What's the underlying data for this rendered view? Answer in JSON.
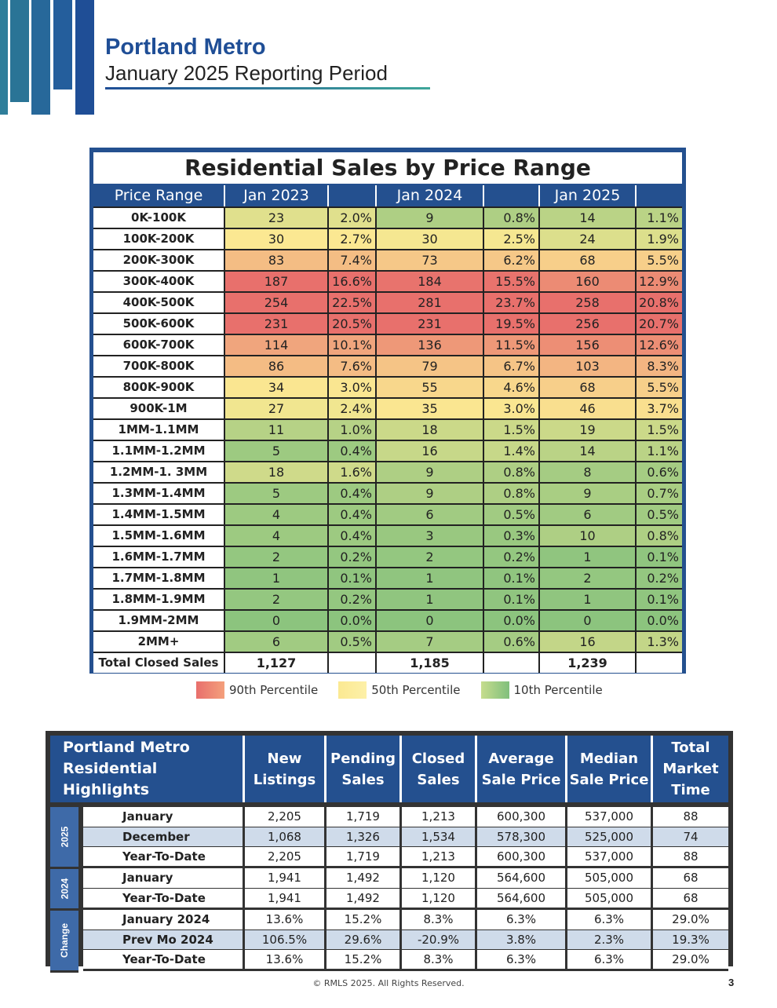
{
  "header": {
    "title": "Portland Metro",
    "subtitle": "January 2025 Reporting Period"
  },
  "sales_table": {
    "title": "Residential Sales by Price Range",
    "headers": [
      "Price Range",
      "Jan 2023",
      "",
      "Jan 2024",
      "",
      "Jan 2025",
      ""
    ],
    "rows": [
      {
        "range": "0K-100K",
        "v23": "23",
        "p23": "2.0%",
        "v24": "9",
        "p24": "0.8%",
        "v25": "14",
        "p25": "1.1%"
      },
      {
        "range": "100K-200K",
        "v23": "30",
        "p23": "2.7%",
        "v24": "30",
        "p24": "2.5%",
        "v25": "24",
        "p25": "1.9%"
      },
      {
        "range": "200K-300K",
        "v23": "83",
        "p23": "7.4%",
        "v24": "73",
        "p24": "6.2%",
        "v25": "68",
        "p25": "5.5%"
      },
      {
        "range": "300K-400K",
        "v23": "187",
        "p23": "16.6%",
        "v24": "184",
        "p24": "15.5%",
        "v25": "160",
        "p25": "12.9%"
      },
      {
        "range": "400K-500K",
        "v23": "254",
        "p23": "22.5%",
        "v24": "281",
        "p24": "23.7%",
        "v25": "258",
        "p25": "20.8%"
      },
      {
        "range": "500K-600K",
        "v23": "231",
        "p23": "20.5%",
        "v24": "231",
        "p24": "19.5%",
        "v25": "256",
        "p25": "20.7%"
      },
      {
        "range": "600K-700K",
        "v23": "114",
        "p23": "10.1%",
        "v24": "136",
        "p24": "11.5%",
        "v25": "156",
        "p25": "12.6%"
      },
      {
        "range": "700K-800K",
        "v23": "86",
        "p23": "7.6%",
        "v24": "79",
        "p24": "6.7%",
        "v25": "103",
        "p25": "8.3%"
      },
      {
        "range": "800K-900K",
        "v23": "34",
        "p23": "3.0%",
        "v24": "55",
        "p24": "4.6%",
        "v25": "68",
        "p25": "5.5%"
      },
      {
        "range": "900K-1M",
        "v23": "27",
        "p23": "2.4%",
        "v24": "35",
        "p24": "3.0%",
        "v25": "46",
        "p25": "3.7%"
      },
      {
        "range": "1MM-1.1MM",
        "v23": "11",
        "p23": "1.0%",
        "v24": "18",
        "p24": "1.5%",
        "v25": "19",
        "p25": "1.5%"
      },
      {
        "range": "1.1MM-1.2MM",
        "v23": "5",
        "p23": "0.4%",
        "v24": "16",
        "p24": "1.4%",
        "v25": "14",
        "p25": "1.1%"
      },
      {
        "range": "1.2MM-1. 3MM",
        "v23": "18",
        "p23": "1.6%",
        "v24": "9",
        "p24": "0.8%",
        "v25": "8",
        "p25": "0.6%"
      },
      {
        "range": "1.3MM-1.4MM",
        "v23": "5",
        "p23": "0.4%",
        "v24": "9",
        "p24": "0.8%",
        "v25": "9",
        "p25": "0.7%"
      },
      {
        "range": "1.4MM-1.5MM",
        "v23": "4",
        "p23": "0.4%",
        "v24": "6",
        "p24": "0.5%",
        "v25": "6",
        "p25": "0.5%"
      },
      {
        "range": "1.5MM-1.6MM",
        "v23": "4",
        "p23": "0.4%",
        "v24": "3",
        "p24": "0.3%",
        "v25": "10",
        "p25": "0.8%"
      },
      {
        "range": "1.6MM-1.7MM",
        "v23": "2",
        "p23": "0.2%",
        "v24": "2",
        "p24": "0.2%",
        "v25": "1",
        "p25": "0.1%"
      },
      {
        "range": "1.7MM-1.8MM",
        "v23": "1",
        "p23": "0.1%",
        "v24": "1",
        "p24": "0.1%",
        "v25": "2",
        "p25": "0.2%"
      },
      {
        "range": "1.8MM-1.9MM",
        "v23": "2",
        "p23": "0.2%",
        "v24": "1",
        "p24": "0.1%",
        "v25": "1",
        "p25": "0.1%"
      },
      {
        "range": "1.9MM-2MM",
        "v23": "0",
        "p23": "0.0%",
        "v24": "0",
        "p24": "0.0%",
        "v25": "0",
        "p25": "0.0%"
      },
      {
        "range": "2MM+",
        "v23": "6",
        "p23": "0.5%",
        "v24": "7",
        "p24": "0.6%",
        "v25": "16",
        "p25": "1.3%"
      }
    ],
    "total": {
      "label": "Total Closed Sales",
      "v23": "1,127",
      "v24": "1,185",
      "v25": "1,239"
    }
  },
  "legend": {
    "items": [
      {
        "label": "90th Percentile",
        "color": "#e8706c"
      },
      {
        "label": "50th Percentile",
        "color": "#fbe992"
      },
      {
        "label": "10th Percentile",
        "color": "#8cc47e"
      }
    ]
  },
  "colors": {
    "brand_blue": "#24508f",
    "red": "#e8706c",
    "yellow": "#fbe992",
    "green": "#8cc47e"
  },
  "highlights": {
    "title": "Portland Metro\nResidential Highlights",
    "columns": [
      "New\nListings",
      "Pending\nSales",
      "Closed\nSales",
      "Average\nSale Price",
      "Median\nSale Price",
      "Total\nMarket\nTime"
    ],
    "groups": [
      {
        "year": "2025",
        "rows": [
          {
            "label": "January",
            "values": [
              "2,205",
              "1,719",
              "1,213",
              "600,300",
              "537,000",
              "88"
            ]
          },
          {
            "label": "December",
            "values": [
              "1,068",
              "1,326",
              "1,534",
              "578,300",
              "525,000",
              "74"
            ]
          },
          {
            "label": "Year-To-Date",
            "values": [
              "2,205",
              "1,719",
              "1,213",
              "600,300",
              "537,000",
              "88"
            ]
          }
        ]
      },
      {
        "year": "2024",
        "rows": [
          {
            "label": "January",
            "values": [
              "1,941",
              "1,492",
              "1,120",
              "564,600",
              "505,000",
              "68"
            ]
          },
          {
            "label": "Year-To-Date",
            "values": [
              "1,941",
              "1,492",
              "1,120",
              "564,600",
              "505,000",
              "68"
            ]
          }
        ]
      },
      {
        "year": "Change",
        "rows": [
          {
            "label": "January 2024",
            "values": [
              "13.6%",
              "15.2%",
              "8.3%",
              "6.3%",
              "6.3%",
              "29.0%"
            ]
          },
          {
            "label": "Prev Mo 2024",
            "values": [
              "106.5%",
              "29.6%",
              "-20.9%",
              "3.8%",
              "2.3%",
              "19.3%"
            ]
          },
          {
            "label": "Year-To-Date",
            "values": [
              "13.6%",
              "15.2%",
              "8.3%",
              "6.3%",
              "6.3%",
              "29.0%"
            ]
          }
        ]
      }
    ]
  },
  "footer": {
    "copyright": "© RMLS 2025. All Rights Reserved.",
    "page_number": "3"
  }
}
